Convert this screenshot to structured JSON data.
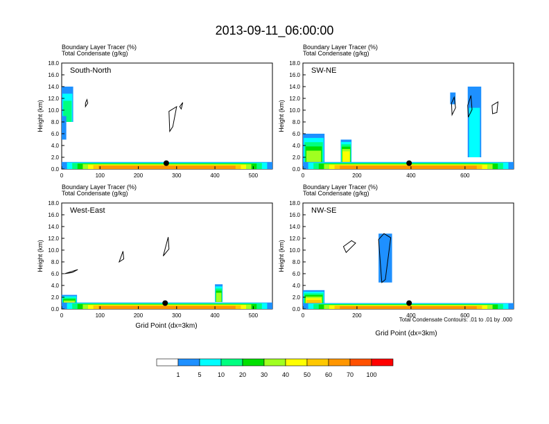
{
  "title": "2013-09-11_06:00:00",
  "shared": {
    "field_label": "Boundary Layer Tracer",
    "field_units": "(%)",
    "contour_label": "Total Condensate",
    "contour_units": "(g/kg)",
    "ylabel": "Height (km)",
    "xlabel": "Grid Point (dx=3km)",
    "contour_note": "Total Condensate Contours: .01 to .01 by .000"
  },
  "colorbar": {
    "levels": [
      "1",
      "5",
      "10",
      "20",
      "30",
      "40",
      "50",
      "60",
      "70",
      "100"
    ],
    "colors": [
      "#ffffff",
      "#1e90ff",
      "#00ffff",
      "#00ff80",
      "#00e000",
      "#a0ff20",
      "#ffff00",
      "#ffc800",
      "#ff9600",
      "#ff5000",
      "#ff0000"
    ]
  },
  "chart_data": [
    {
      "type": "heatmap",
      "id": "south-north",
      "title": "South-North",
      "xlim": [
        0,
        550
      ],
      "ylim": [
        0,
        18
      ],
      "xticks": [
        0,
        100,
        200,
        300,
        400,
        500
      ],
      "yticks": [
        0,
        2,
        4,
        6,
        8,
        10,
        12,
        14,
        16,
        18
      ],
      "marker": [
        273,
        1.0
      ],
      "blobs": [
        {
          "x": [
            0,
            30
          ],
          "y": [
            8,
            14
          ],
          "level": 3
        },
        {
          "x": [
            0,
            12
          ],
          "y": [
            5,
            9
          ],
          "level": 1
        },
        {
          "x": [
            0,
            550
          ],
          "y": [
            0,
            1.2
          ],
          "level": 8
        }
      ],
      "contours": [
        [
          [
            62,
            10.6
          ],
          [
            68,
            11.2
          ],
          [
            66,
            11.8
          ],
          [
            62,
            11.2
          ]
        ],
        [
          [
            280,
            9.8
          ],
          [
            300,
            10.6
          ],
          [
            290,
            7.2
          ],
          [
            282,
            6.4
          ]
        ],
        [
          [
            308,
            10.6
          ],
          [
            316,
            11.3
          ],
          [
            312,
            10.2
          ]
        ]
      ]
    },
    {
      "type": "heatmap",
      "id": "sw-ne",
      "title": "SW-NE",
      "xlim": [
        0,
        780
      ],
      "ylim": [
        0,
        18
      ],
      "xticks": [
        0,
        200,
        400,
        600
      ],
      "yticks": [
        0,
        2,
        4,
        6,
        8,
        10,
        12,
        14,
        16,
        18
      ],
      "marker": [
        393,
        1.0
      ],
      "blobs": [
        {
          "x": [
            0,
            80
          ],
          "y": [
            0,
            6
          ],
          "level": 5
        },
        {
          "x": [
            140,
            180
          ],
          "y": [
            1,
            5
          ],
          "level": 6
        },
        {
          "x": [
            545,
            565
          ],
          "y": [
            11,
            13
          ],
          "level": 1
        },
        {
          "x": [
            610,
            660
          ],
          "y": [
            2,
            14
          ],
          "level": 2
        },
        {
          "x": [
            0,
            780
          ],
          "y": [
            0,
            1.2
          ],
          "level": 8
        }
      ],
      "contours": [
        [
          [
            550,
            11.2
          ],
          [
            560,
            12.2
          ],
          [
            565,
            10.4
          ],
          [
            552,
            9.2
          ]
        ],
        [
          [
            610,
            10.8
          ],
          [
            622,
            12.5
          ],
          [
            626,
            10.1
          ],
          [
            612,
            8.8
          ]
        ],
        [
          [
            700,
            10.8
          ],
          [
            722,
            11.4
          ],
          [
            718,
            9.6
          ],
          [
            702,
            9.4
          ]
        ]
      ]
    },
    {
      "type": "heatmap",
      "id": "west-east",
      "title": "West-East",
      "xlim": [
        0,
        550
      ],
      "ylim": [
        0,
        18
      ],
      "xticks": [
        0,
        100,
        200,
        300,
        400,
        500
      ],
      "yticks": [
        0,
        2,
        4,
        6,
        8,
        10,
        12,
        14,
        16,
        18
      ],
      "marker": [
        270,
        1.0
      ],
      "blobs": [
        {
          "x": [
            0,
            40
          ],
          "y": [
            0,
            2.4
          ],
          "level": 6
        },
        {
          "x": [
            400,
            420
          ],
          "y": [
            1.2,
            4.2
          ],
          "level": 5
        },
        {
          "x": [
            0,
            550
          ],
          "y": [
            0,
            1.1
          ],
          "level": 8
        }
      ],
      "contours": [
        [
          [
            8,
            6.0
          ],
          [
            42,
            6.7
          ],
          [
            28,
            6.2
          ]
        ],
        [
          [
            150,
            8.0
          ],
          [
            160,
            9.8
          ],
          [
            162,
            8.5
          ]
        ],
        [
          [
            265,
            9.0
          ],
          [
            278,
            12.2
          ],
          [
            280,
            10.2
          ]
        ]
      ]
    },
    {
      "type": "heatmap",
      "id": "nw-se",
      "title": "NW-SE",
      "xlim": [
        0,
        780
      ],
      "ylim": [
        0,
        18
      ],
      "xticks": [
        0,
        200,
        400,
        600
      ],
      "yticks": [
        0,
        2,
        4,
        6,
        8,
        10,
        12,
        14,
        16,
        18
      ],
      "marker": [
        393,
        1.0
      ],
      "blobs": [
        {
          "x": [
            0,
            80
          ],
          "y": [
            0,
            3.2
          ],
          "level": 7
        },
        {
          "x": [
            280,
            330
          ],
          "y": [
            4.5,
            12.8
          ],
          "level": 1
        },
        {
          "x": [
            0,
            780
          ],
          "y": [
            0,
            1.0
          ],
          "level": 8
        }
      ],
      "contours": [
        [
          [
            150,
            10.6
          ],
          [
            180,
            11.6
          ],
          [
            195,
            11.2
          ],
          [
            160,
            9.6
          ]
        ],
        [
          [
            280,
            11.8
          ],
          [
            300,
            12.8
          ],
          [
            325,
            12.1
          ],
          [
            305,
            5.0
          ],
          [
            292,
            4.5
          ]
        ]
      ]
    }
  ]
}
